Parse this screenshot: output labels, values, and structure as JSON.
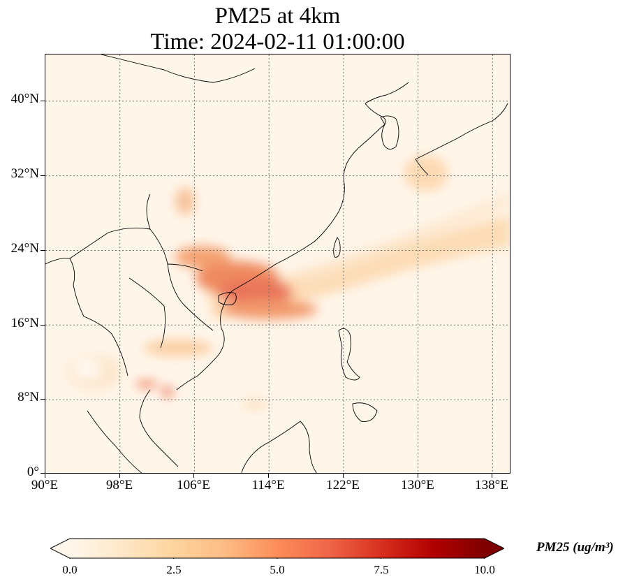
{
  "title": {
    "line1": "PM25 at 4km",
    "line2": "Time: 2024-02-11 01:00:00"
  },
  "map": {
    "lon_range": [
      90,
      140
    ],
    "lat_range": [
      0,
      45
    ],
    "variable": "PM25",
    "level": "4km",
    "gridlines": true,
    "colormap": "OrRd",
    "lat_ticks": [
      "0°",
      "8°N",
      "16°N",
      "24°N",
      "32°N",
      "40°N"
    ],
    "lon_ticks": [
      "90°E",
      "98°E",
      "106°E",
      "114°E",
      "122°E",
      "130°E",
      "138°E"
    ]
  },
  "colorbar": {
    "ticks": [
      "0.0",
      "2.5",
      "5.0",
      "7.5",
      "10.0"
    ],
    "min": 0,
    "max": 10,
    "extend": "both",
    "label": "PM25 (ug/m³)",
    "colors": [
      "#fff7ec",
      "#fee8c8",
      "#fdd49e",
      "#fdbb84",
      "#fc8d59",
      "#ef6548",
      "#d7301f",
      "#b30000",
      "#7f0000"
    ]
  }
}
